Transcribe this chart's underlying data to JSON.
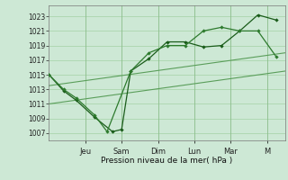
{
  "background_color": "#cde8d5",
  "grid_color": "#99cc99",
  "line_color_dark": "#1a5c1a",
  "line_color_mid": "#2d7a2d",
  "line_color_light": "#5a9e5a",
  "xlabel": "Pression niveau de la mer( hPa )",
  "ylim": [
    1006,
    1024.5
  ],
  "yticks": [
    1007,
    1009,
    1011,
    1013,
    1015,
    1017,
    1019,
    1021,
    1023
  ],
  "xlim": [
    0,
    13
  ],
  "x_tick_positions": [
    2,
    4,
    6,
    8,
    10,
    12
  ],
  "x_tick_labels": [
    "Jeu",
    "Sam",
    "Dim",
    "Lun",
    "Mar",
    "M"
  ],
  "trend1": {
    "x": [
      0,
      13
    ],
    "y": [
      1013.5,
      1018.0
    ]
  },
  "trend2": {
    "x": [
      0,
      13
    ],
    "y": [
      1011.0,
      1015.5
    ]
  },
  "line_a": {
    "x": [
      0,
      0.8,
      1.5,
      2.5,
      3.5,
      4.0,
      4.5,
      5.5,
      6.5,
      7.5,
      8.5,
      9.5,
      10.5,
      11.5,
      12.5
    ],
    "y": [
      1015,
      1012.8,
      1011.5,
      1009.2,
      1007.2,
      1007.5,
      1015.5,
      1017.2,
      1019.5,
      1019.5,
      1018.8,
      1019.0,
      1021.0,
      1023.2,
      1022.5
    ]
  },
  "line_b": {
    "x": [
      0,
      0.8,
      1.5,
      2.5,
      3.2,
      4.5,
      5.5,
      6.5,
      7.5,
      8.5,
      9.5,
      10.5,
      11.5,
      12.5
    ],
    "y": [
      1015,
      1013.0,
      1011.8,
      1009.5,
      1007.2,
      1015.5,
      1018.0,
      1019.0,
      1019.0,
      1021.0,
      1021.5,
      1021.0,
      1021.0,
      1017.5
    ]
  },
  "line_c": {
    "x": [
      8.5,
      9.5,
      10.5,
      11.5,
      12.5
    ],
    "y": [
      1021.0,
      1021.5,
      1021.0,
      1023.2,
      1017.5
    ]
  }
}
